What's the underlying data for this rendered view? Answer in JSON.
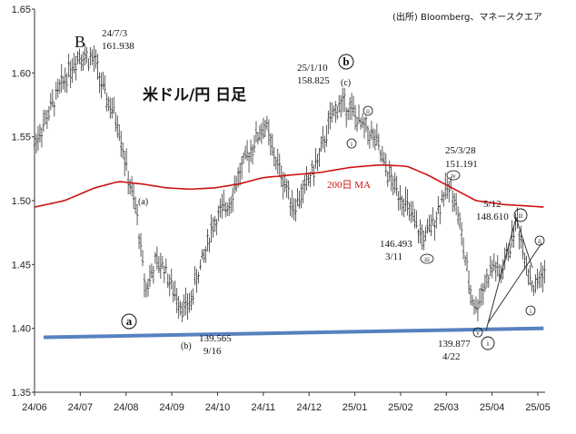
{
  "source": "(出所) Bloomberg、マネースクエア",
  "chart_data": {
    "type": "ohlc",
    "title": "米ドル/円 日足",
    "ylim": [
      1.35,
      1.65
    ],
    "yticks": [
      "1.35",
      "1.40",
      "1.45",
      "1.50",
      "1.55",
      "1.60",
      "1.65"
    ],
    "xticks": [
      "24/06",
      "24/07",
      "24/08",
      "24/09",
      "24/10",
      "24/11",
      "24/12",
      "25/01",
      "25/02",
      "25/03",
      "25/04",
      "25/05"
    ],
    "ma_label": "200日 MA",
    "price_path": [
      [
        0,
        1.545
      ],
      [
        12,
        1.575
      ],
      [
        22,
        1.6
      ],
      [
        30,
        1.615
      ],
      [
        40,
        1.61
      ],
      [
        46,
        1.585
      ],
      [
        56,
        1.56
      ],
      [
        62,
        1.52
      ],
      [
        68,
        1.49
      ],
      [
        74,
        1.43
      ],
      [
        80,
        1.45
      ],
      [
        86,
        1.45
      ],
      [
        92,
        1.43
      ],
      [
        100,
        1.415
      ],
      [
        104,
        1.42
      ],
      [
        108,
        1.44
      ],
      [
        114,
        1.46
      ],
      [
        118,
        1.48
      ],
      [
        124,
        1.49
      ],
      [
        130,
        1.5
      ],
      [
        136,
        1.52
      ],
      [
        142,
        1.535
      ],
      [
        148,
        1.55
      ],
      [
        154,
        1.56
      ],
      [
        158,
        1.54
      ],
      [
        163,
        1.525
      ],
      [
        168,
        1.51
      ],
      [
        173,
        1.495
      ],
      [
        178,
        1.505
      ],
      [
        184,
        1.52
      ],
      [
        190,
        1.535
      ],
      [
        196,
        1.56
      ],
      [
        202,
        1.575
      ],
      [
        207,
        1.575
      ],
      [
        212,
        1.57
      ],
      [
        216,
        1.56
      ],
      [
        222,
        1.555
      ],
      [
        228,
        1.545
      ],
      [
        232,
        1.53
      ],
      [
        236,
        1.52
      ],
      [
        240,
        1.51
      ],
      [
        244,
        1.505
      ],
      [
        248,
        1.495
      ],
      [
        252,
        1.485
      ],
      [
        256,
        1.475
      ],
      [
        260,
        1.47
      ],
      [
        264,
        1.48
      ],
      [
        268,
        1.49
      ],
      [
        272,
        1.505
      ],
      [
        278,
        1.51
      ],
      [
        282,
        1.49
      ],
      [
        286,
        1.46
      ],
      [
        290,
        1.43
      ],
      [
        294,
        1.415
      ],
      [
        298,
        1.43
      ],
      [
        302,
        1.44
      ],
      [
        306,
        1.45
      ],
      [
        310,
        1.44
      ],
      [
        314,
        1.455
      ],
      [
        318,
        1.47
      ],
      [
        321,
        1.485
      ],
      [
        324,
        1.47
      ],
      [
        327,
        1.455
      ],
      [
        330,
        1.44
      ],
      [
        333,
        1.43
      ],
      [
        336,
        1.44
      ],
      [
        339,
        1.445
      ]
    ],
    "ma_path": [
      [
        0,
        1.495
      ],
      [
        20,
        1.5
      ],
      [
        40,
        1.51
      ],
      [
        56,
        1.515
      ],
      [
        72,
        1.513
      ],
      [
        88,
        1.51
      ],
      [
        104,
        1.509
      ],
      [
        120,
        1.51
      ],
      [
        136,
        1.513
      ],
      [
        152,
        1.518
      ],
      [
        170,
        1.52
      ],
      [
        190,
        1.522
      ],
      [
        210,
        1.526
      ],
      [
        230,
        1.528
      ],
      [
        248,
        1.527
      ],
      [
        262,
        1.52
      ],
      [
        278,
        1.51
      ],
      [
        294,
        1.5
      ],
      [
        312,
        1.497
      ],
      [
        326,
        1.496
      ],
      [
        339,
        1.495
      ]
    ],
    "support_line": [
      [
        0,
        1.393
      ],
      [
        339,
        1.4
      ]
    ],
    "annotations": [
      {
        "id": "top-b",
        "lines": [
          "24/7/3",
          "161.938"
        ]
      },
      {
        "id": "top-circ-b",
        "lines": [
          "25/1/10",
          "158.825"
        ]
      },
      {
        "id": "low-b",
        "lines": [
          "139.565",
          "9/16"
        ]
      },
      {
        "id": "low-mar",
        "lines": [
          "146.493",
          "3/11"
        ]
      },
      {
        "id": "low-apr",
        "lines": [
          "139.877",
          "4/22"
        ]
      },
      {
        "id": "high-mar",
        "lines": [
          "25/3/28",
          "151.191"
        ]
      },
      {
        "id": "high-may",
        "lines": [
          "5/12",
          "148.610"
        ]
      }
    ],
    "wave_labels": {
      "B": "B",
      "a_lower": "(a)",
      "b_lower": "(b)",
      "c_lower": "(c)",
      "circle_a": "a",
      "circle_b": "b",
      "roman_i": "i",
      "roman_ii": "ii",
      "roman_iii": "iii",
      "roman_iv": "iv",
      "roman_v": "v"
    }
  }
}
